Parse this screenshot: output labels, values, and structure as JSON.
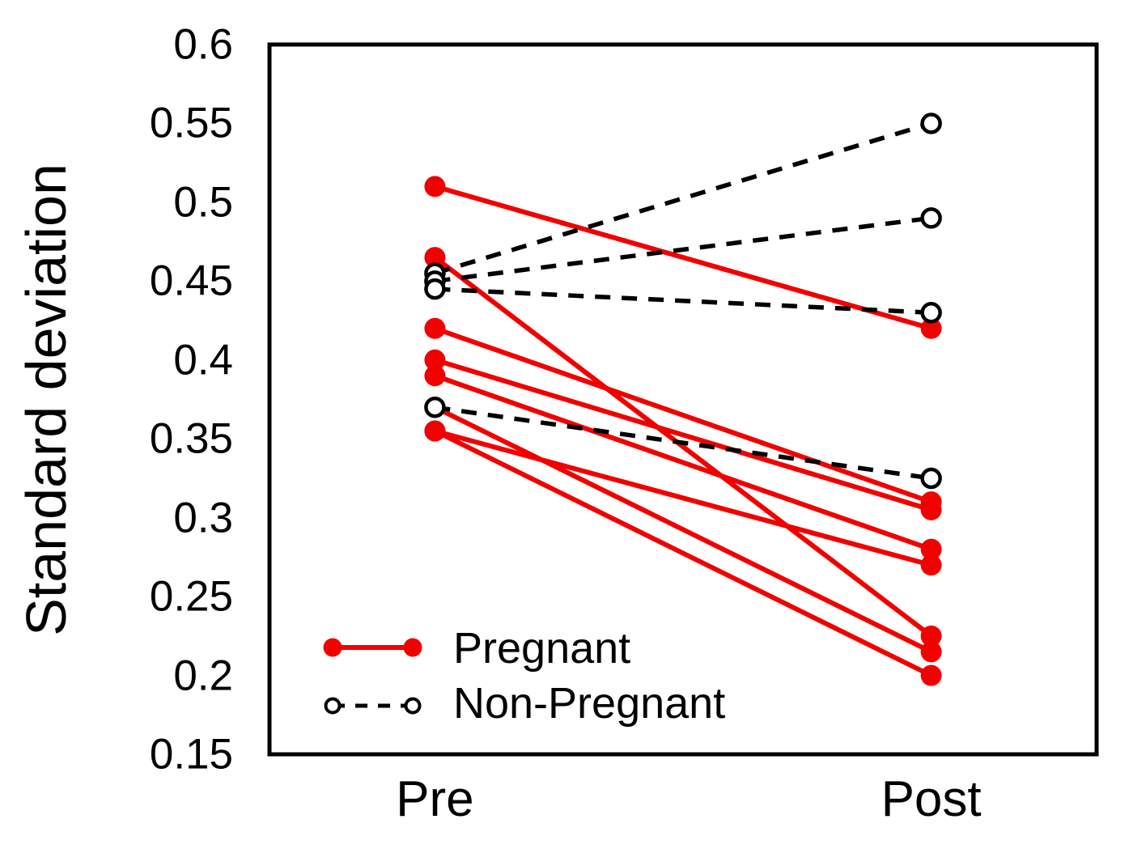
{
  "axes": {
    "y_label": "Standard deviation",
    "y_ticks": [
      "0.6",
      "0.55",
      "0.5",
      "0.45",
      "0.4",
      "0.35",
      "0.3",
      "0.25",
      "0.2",
      "0.15"
    ],
    "x_categories": [
      "Pre",
      "Post"
    ]
  },
  "legend": {
    "items": [
      {
        "label": "Pregnant",
        "swatch": "red-solid-line-filled-dots"
      },
      {
        "label": "Non-Pregnant",
        "swatch": "black-dashed-line-open-circles"
      }
    ]
  },
  "colors": {
    "pregnant": "#f20000",
    "non_pregnant": "#000000",
    "background": "#ffffff"
  },
  "chart_data": {
    "type": "line",
    "subtype": "paired-slope-chart",
    "categories": [
      "Pre",
      "Post"
    ],
    "ylabel": "Standard deviation",
    "ylim": [
      0.15,
      0.6
    ],
    "y_tick_step": 0.05,
    "grid": false,
    "legend_position": "inside-bottom-left",
    "series": [
      {
        "name": "Pregnant",
        "color": "#f20000",
        "line_style": "solid",
        "marker": "filled-circle",
        "pairs": [
          [
            0.51,
            0.42
          ],
          [
            0.465,
            0.225
          ],
          [
            0.42,
            0.31
          ],
          [
            0.4,
            0.305
          ],
          [
            0.39,
            0.28
          ],
          [
            0.37,
            0.215
          ],
          [
            0.355,
            0.27
          ],
          [
            0.355,
            0.2
          ]
        ]
      },
      {
        "name": "Non-Pregnant",
        "color": "#000000",
        "line_style": "dashed",
        "marker": "open-circle",
        "pairs": [
          [
            0.455,
            0.55
          ],
          [
            0.45,
            0.49
          ],
          [
            0.445,
            0.43
          ],
          [
            0.37,
            0.325
          ]
        ]
      }
    ]
  }
}
